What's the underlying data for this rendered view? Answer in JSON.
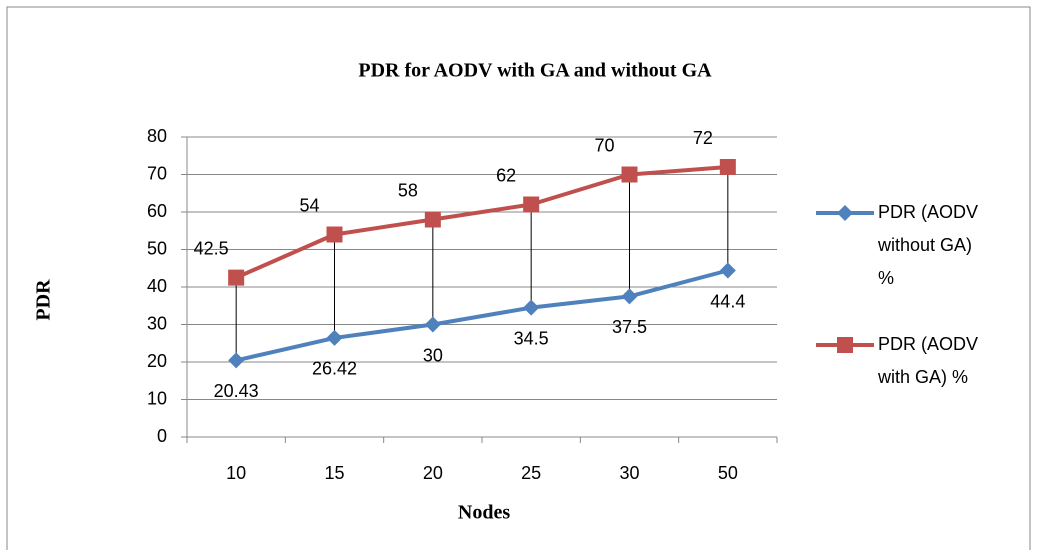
{
  "chart_data": {
    "type": "line",
    "title": "PDR for AODV  with GA and without GA",
    "x_label": "Nodes",
    "y_label": "PDR",
    "categories": [
      "10",
      "15",
      "20",
      "25",
      "30",
      "50"
    ],
    "series": [
      {
        "name": "PDR (AODV without GA) %",
        "color": "#4f81bd",
        "marker": "diamond",
        "values": [
          20.43,
          26.42,
          30,
          34.5,
          37.5,
          44.4
        ]
      },
      {
        "name": "PDR (AODV with GA) %",
        "color": "#c0504d",
        "marker": "square",
        "values": [
          42.5,
          54,
          58,
          62,
          70,
          72
        ]
      }
    ],
    "ylim": [
      0,
      80
    ],
    "yticks": [
      0,
      10,
      20,
      30,
      40,
      50,
      60,
      70,
      80
    ],
    "grid": true,
    "legend": "right",
    "drop_lines": true
  }
}
